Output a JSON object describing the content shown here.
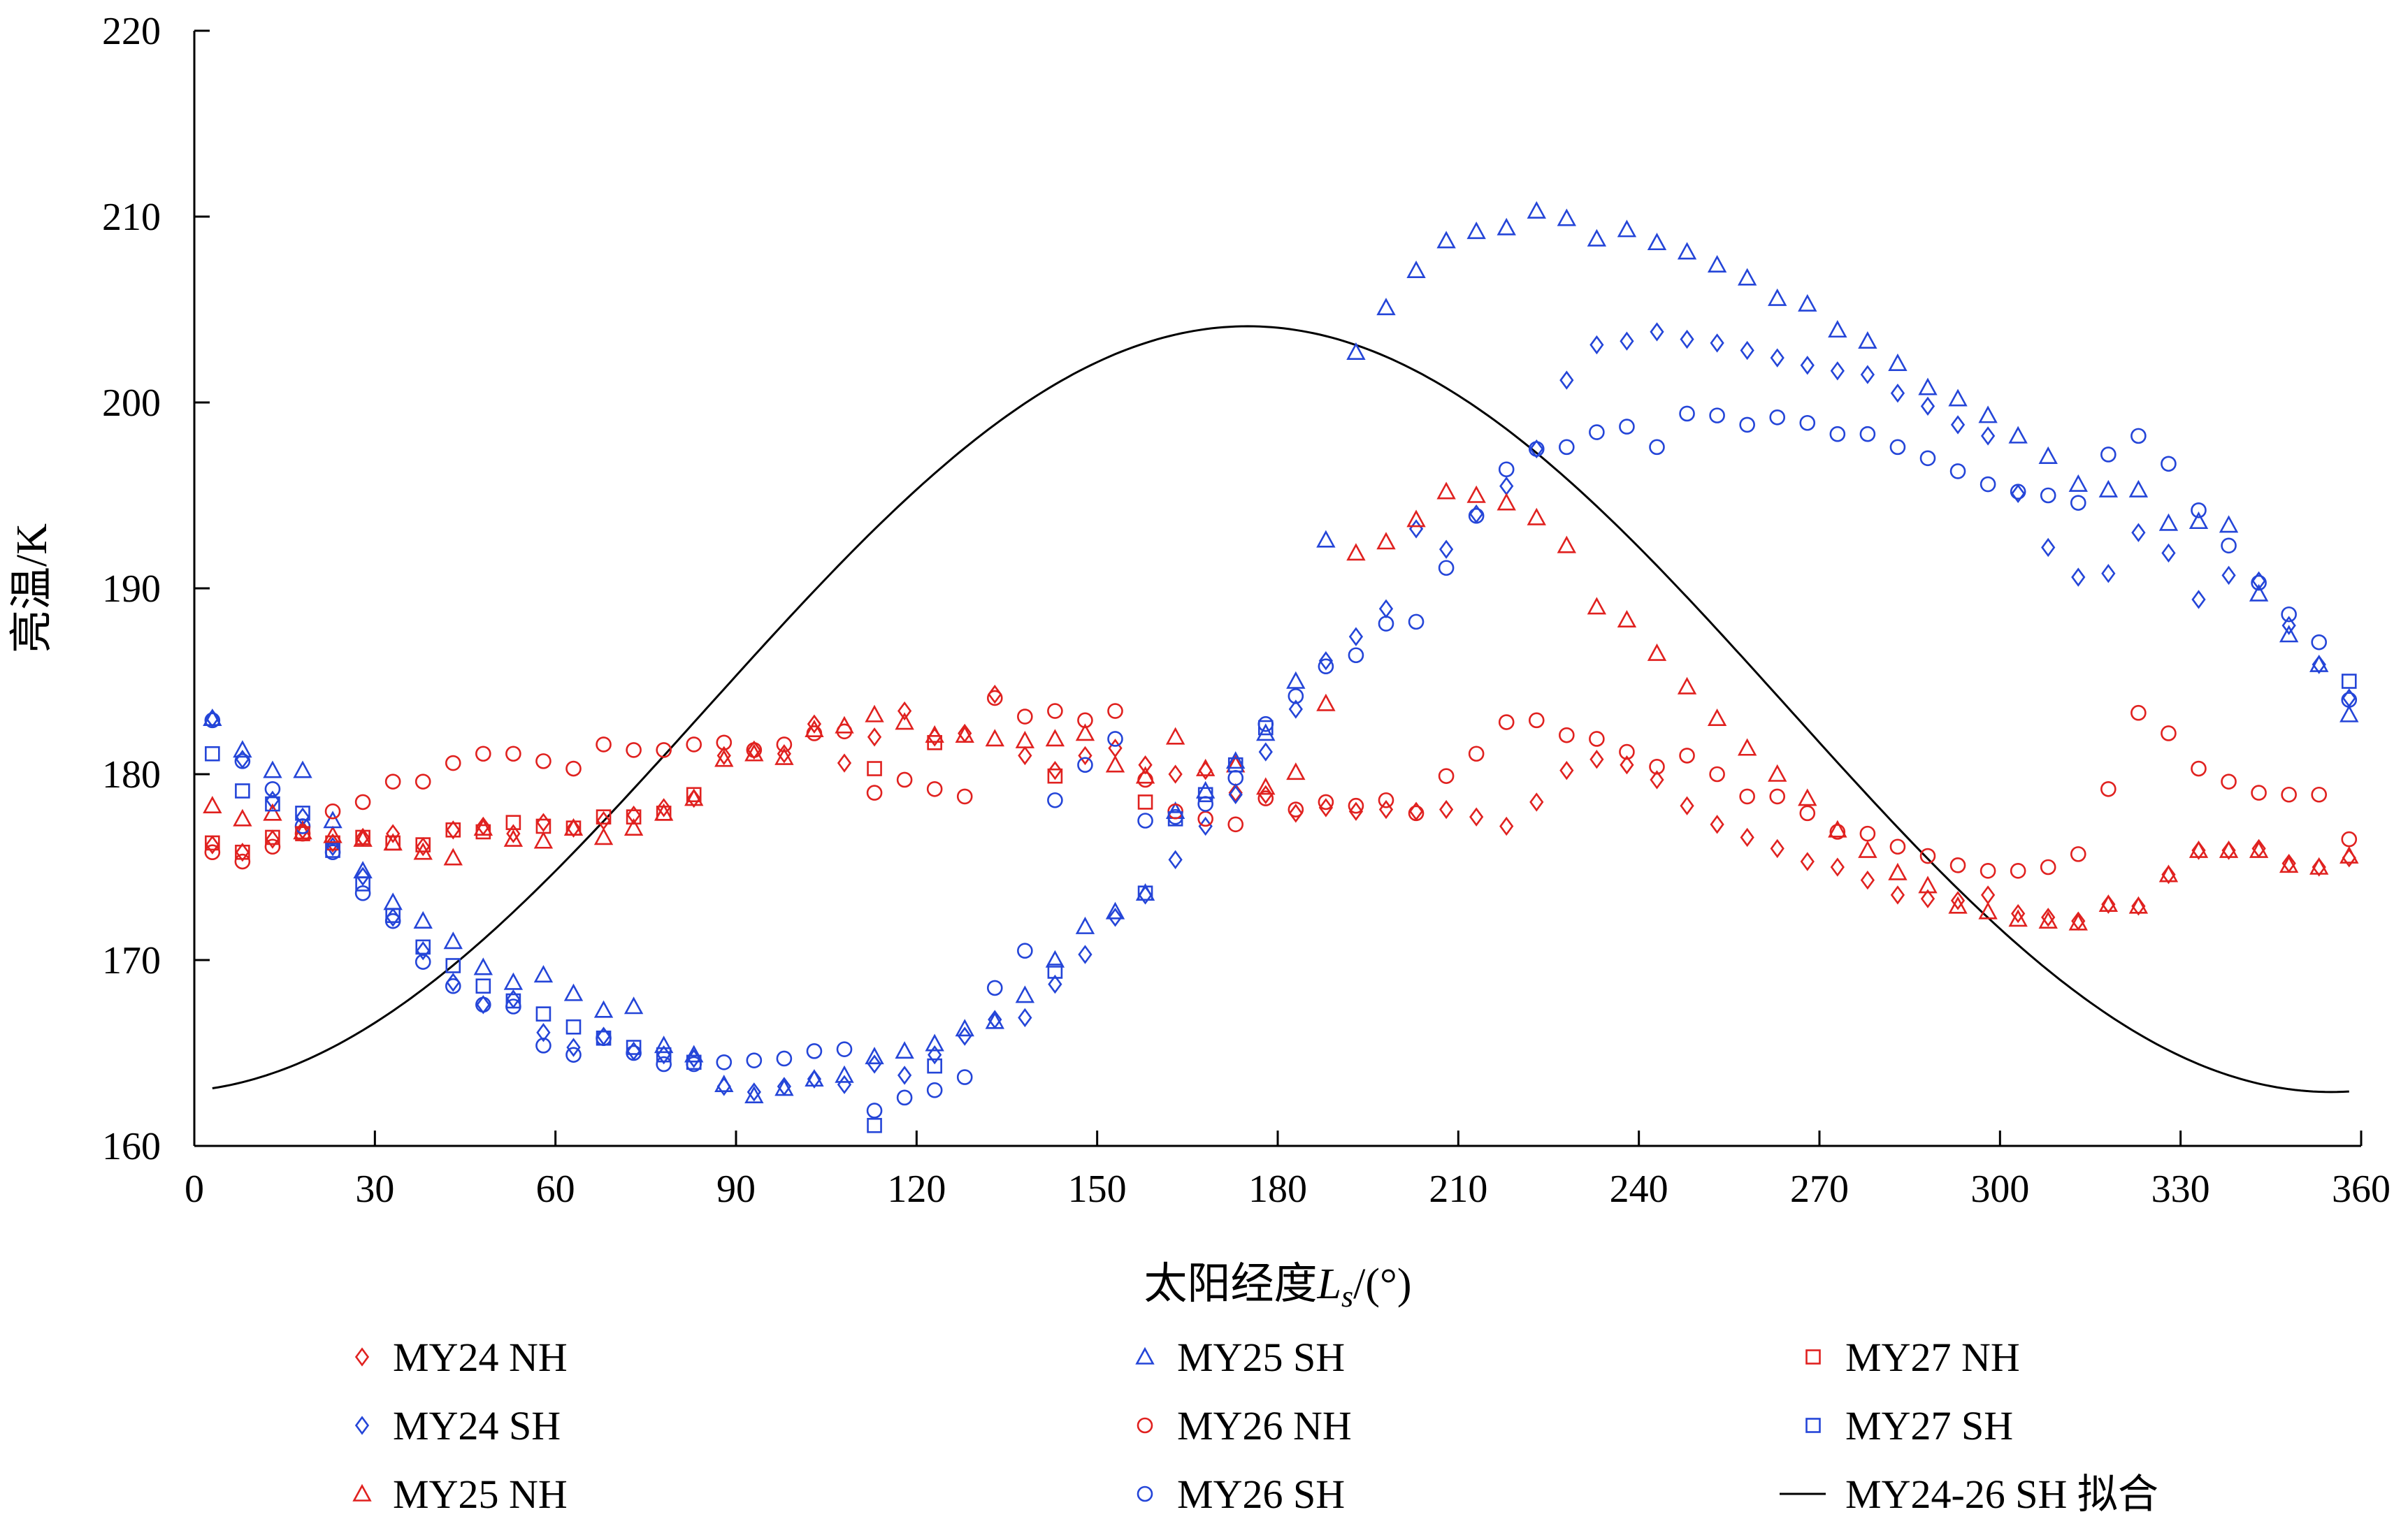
{
  "chart_data": {
    "type": "scatter",
    "title": "",
    "xlabel": "太阳经度",
    "xlabel_symbol": "L",
    "xlabel_subscript": "s",
    "xlabel_unit": "/(°)",
    "ylabel": "亮温/K",
    "xlim": [
      0,
      360
    ],
    "ylim": [
      160,
      220
    ],
    "xticks": [
      0,
      30,
      60,
      90,
      120,
      150,
      180,
      210,
      240,
      270,
      300,
      330,
      360
    ],
    "yticks": [
      160,
      170,
      180,
      190,
      200,
      210,
      220
    ],
    "grid": false,
    "legend_position": "bottom",
    "colors": {
      "red": "#e0211f",
      "blue": "#2445d8",
      "fit": "#000000"
    },
    "series": [
      {
        "name": "MY24 NH",
        "marker": "diamond",
        "color": "#e0211f",
        "x": [
          3,
          8,
          13,
          18,
          23,
          28,
          33,
          38,
          43,
          48,
          53,
          58,
          63,
          68,
          73,
          78,
          83,
          88,
          93,
          98,
          103,
          108,
          113,
          118,
          123,
          128,
          133,
          138,
          143,
          148,
          153,
          158,
          163,
          168,
          173,
          178,
          183,
          188,
          193,
          198,
          203,
          208,
          213,
          218,
          223,
          228,
          233,
          238,
          243,
          248,
          253,
          258,
          263,
          268,
          273,
          278,
          283,
          288,
          293,
          298,
          303,
          308,
          313,
          318,
          323,
          328,
          333,
          338,
          343,
          348,
          353,
          358
        ],
        "y": [
          176.2,
          175.8,
          176.5,
          177,
          176.3,
          176.6,
          176.8,
          176.1,
          177,
          177.2,
          176.8,
          177.4,
          177.1,
          177.5,
          177.8,
          178.2,
          178.7,
          181,
          181.3,
          181.1,
          182.7,
          180.6,
          182,
          183.4,
          182,
          182.2,
          184.3,
          181,
          180.2,
          181,
          181.4,
          180.5,
          180,
          180.2,
          179,
          178.9,
          177.9,
          178.2,
          178,
          178.1,
          178,
          178.1,
          177.7,
          177.2,
          178.5,
          180.2,
          180.8,
          180.5,
          179.7,
          178.3,
          177.3,
          176.6,
          176,
          175.3,
          175,
          174.3,
          173.5,
          173.3,
          173.2,
          173.5,
          172.5,
          172.3,
          172.1,
          173,
          172.9,
          174.6,
          175.9,
          175.9,
          176,
          175.2,
          175,
          175.5
        ]
      },
      {
        "name": "MY24 SH",
        "marker": "diamond",
        "color": "#2445d8",
        "x": [
          3,
          8,
          13,
          18,
          23,
          28,
          33,
          38,
          43,
          48,
          53,
          58,
          63,
          68,
          73,
          78,
          83,
          88,
          93,
          98,
          103,
          108,
          113,
          118,
          123,
          128,
          133,
          138,
          143,
          148,
          153,
          158,
          163,
          168,
          173,
          178,
          183,
          188,
          193,
          198,
          203,
          208,
          213,
          218,
          223,
          228,
          233,
          238,
          243,
          248,
          253,
          258,
          263,
          268,
          273,
          278,
          283,
          288,
          293,
          298,
          303,
          308,
          313,
          318,
          323,
          328,
          333,
          338,
          343,
          348,
          353,
          358
        ],
        "y": [
          183,
          180.8,
          178.6,
          177.7,
          176.1,
          174.5,
          172.3,
          170.5,
          168.8,
          167.6,
          167.9,
          166.1,
          165.3,
          165.9,
          165.1,
          164.9,
          164.7,
          163.2,
          162.9,
          163.2,
          163.6,
          163.3,
          164.4,
          163.8,
          164.9,
          165.9,
          166.8,
          166.9,
          168.7,
          170.3,
          172.3,
          173.5,
          175.4,
          177.2,
          178.9,
          181.2,
          183.5,
          186.1,
          187.4,
          188.9,
          193.2,
          192.1,
          194,
          195.5,
          197.5,
          201.2,
          203.1,
          203.3,
          203.8,
          203.4,
          203.2,
          202.8,
          202.4,
          202,
          201.7,
          201.5,
          200.5,
          199.8,
          198.8,
          198.2,
          195.1,
          192.2,
          190.6,
          190.8,
          193,
          191.9,
          189.4,
          190.7,
          190.4,
          188,
          185.9,
          184.1
        ]
      },
      {
        "name": "MY25 NH",
        "marker": "triangle",
        "color": "#e0211f",
        "x": [
          3,
          8,
          13,
          18,
          23,
          28,
          33,
          38,
          43,
          48,
          53,
          58,
          63,
          68,
          73,
          78,
          83,
          88,
          93,
          98,
          103,
          108,
          113,
          118,
          123,
          128,
          133,
          138,
          143,
          148,
          153,
          158,
          163,
          168,
          173,
          178,
          183,
          188,
          193,
          198,
          203,
          208,
          213,
          218,
          223,
          228,
          233,
          238,
          243,
          248,
          253,
          258,
          263,
          268,
          273,
          278,
          283,
          288,
          293,
          298,
          303,
          308,
          313,
          318,
          323,
          328,
          333,
          338,
          343,
          348,
          353,
          358
        ],
        "y": [
          178.3,
          177.6,
          177.9,
          176.9,
          176.7,
          176.5,
          176.3,
          175.8,
          175.5,
          177.1,
          176.5,
          176.4,
          177.1,
          176.6,
          177.1,
          177.9,
          178.7,
          180.8,
          181.1,
          180.9,
          182.4,
          182.6,
          183.2,
          182.8,
          182.1,
          182.1,
          181.9,
          181.8,
          181.9,
          182.2,
          180.5,
          179.9,
          182,
          180.3,
          180.5,
          179.3,
          180.1,
          183.8,
          191.9,
          192.5,
          193.7,
          195.2,
          195,
          194.6,
          193.8,
          192.3,
          189,
          188.3,
          186.5,
          184.7,
          183,
          181.4,
          180,
          178.7,
          177,
          175.9,
          174.7,
          174,
          172.9,
          172.6,
          172.2,
          172.1,
          172,
          173,
          172.9,
          174.6,
          175.9,
          175.9,
          175.9,
          175.1,
          175,
          175.6
        ]
      },
      {
        "name": "MY25 SH",
        "marker": "triangle",
        "color": "#2445d8",
        "x": [
          3,
          8,
          13,
          18,
          23,
          28,
          33,
          38,
          43,
          48,
          53,
          58,
          63,
          68,
          73,
          78,
          83,
          88,
          93,
          98,
          103,
          108,
          113,
          118,
          123,
          128,
          133,
          138,
          143,
          148,
          153,
          158,
          163,
          168,
          173,
          178,
          183,
          188,
          193,
          198,
          203,
          208,
          213,
          218,
          223,
          228,
          233,
          238,
          243,
          248,
          253,
          258,
          263,
          268,
          273,
          278,
          283,
          288,
          293,
          298,
          303,
          308,
          313,
          318,
          323,
          328,
          333,
          338,
          343,
          348,
          353,
          358
        ],
        "y": [
          183,
          181.3,
          180.2,
          180.2,
          177.5,
          174.8,
          173.1,
          172.1,
          171,
          169.6,
          168.8,
          169.2,
          168.2,
          167.3,
          167.5,
          165.4,
          164.9,
          163.3,
          162.7,
          163.1,
          163.6,
          163.8,
          164.8,
          165.1,
          165.5,
          166.3,
          166.7,
          168.1,
          170,
          171.8,
          172.6,
          173.6,
          178,
          179.1,
          180.7,
          182.2,
          185,
          192.6,
          202.7,
          205.1,
          207.1,
          208.7,
          209.2,
          209.4,
          210.3,
          209.9,
          208.8,
          209.3,
          208.6,
          208.1,
          207.4,
          206.7,
          205.6,
          205.3,
          203.9,
          203.3,
          202.1,
          200.8,
          200.2,
          199.3,
          198.2,
          197.1,
          195.6,
          195.3,
          195.3,
          193.5,
          193.6,
          193.4,
          189.7,
          187.5,
          185.9,
          183.2
        ]
      },
      {
        "name": "MY26 NH",
        "marker": "circle",
        "color": "#e0211f",
        "x": [
          3,
          8,
          13,
          18,
          23,
          28,
          33,
          38,
          43,
          48,
          53,
          58,
          63,
          68,
          73,
          78,
          83,
          88,
          93,
          98,
          103,
          108,
          113,
          118,
          123,
          128,
          133,
          138,
          143,
          148,
          153,
          158,
          163,
          168,
          173,
          178,
          183,
          188,
          193,
          198,
          203,
          208,
          213,
          218,
          223,
          228,
          233,
          238,
          243,
          248,
          253,
          258,
          263,
          268,
          273,
          278,
          283,
          288,
          293,
          298,
          303,
          308,
          313,
          318,
          323,
          328,
          333,
          338,
          343,
          348,
          353,
          358
        ],
        "y": [
          175.8,
          175.3,
          176.1,
          176.8,
          178,
          178.5,
          179.6,
          179.6,
          180.6,
          181.1,
          181.1,
          180.7,
          180.3,
          181.6,
          181.3,
          181.3,
          181.6,
          181.7,
          181.3,
          181.6,
          182.2,
          182.3,
          179,
          179.7,
          179.2,
          178.8,
          184.1,
          183.1,
          183.4,
          182.9,
          183.4,
          179.7,
          178,
          177.6,
          177.3,
          178.7,
          178.1,
          178.5,
          178.3,
          178.6,
          177.9,
          179.9,
          181.1,
          182.8,
          182.9,
          182.1,
          181.9,
          181.2,
          180.4,
          181,
          180,
          178.8,
          178.8,
          177.9,
          176.9,
          176.8,
          176.1,
          175.6,
          175.1,
          174.8,
          174.8,
          175,
          175.7,
          179.2,
          183.3,
          182.2,
          180.3,
          179.6,
          179,
          178.9,
          178.9,
          176.5
        ]
      },
      {
        "name": "MY26 SH",
        "marker": "circle",
        "color": "#2445d8",
        "x": [
          3,
          8,
          13,
          18,
          23,
          28,
          33,
          38,
          43,
          48,
          53,
          58,
          63,
          68,
          73,
          78,
          83,
          88,
          93,
          98,
          103,
          108,
          113,
          118,
          123,
          128,
          133,
          138,
          143,
          148,
          153,
          158,
          163,
          168,
          173,
          178,
          183,
          188,
          193,
          198,
          203,
          208,
          213,
          218,
          223,
          228,
          233,
          238,
          243,
          248,
          253,
          258,
          263,
          268,
          273,
          278,
          283,
          288,
          293,
          298,
          303,
          308,
          313,
          318,
          323,
          328,
          333,
          338,
          343,
          348,
          353,
          358
        ],
        "y": [
          182.9,
          180.7,
          179.2,
          177.2,
          175.8,
          173.6,
          172.1,
          169.9,
          168.6,
          167.6,
          167.5,
          165.4,
          164.9,
          165.8,
          165,
          164.4,
          164.4,
          164.5,
          164.6,
          164.7,
          165.1,
          165.2,
          161.9,
          162.6,
          163,
          163.7,
          168.5,
          170.5,
          178.6,
          180.5,
          181.9,
          177.5,
          177.7,
          178.4,
          179.8,
          182.7,
          184.2,
          185.8,
          186.4,
          188.1,
          188.2,
          191.1,
          193.9,
          196.4,
          197.5,
          197.6,
          198.4,
          198.7,
          197.6,
          199.4,
          199.3,
          198.8,
          199.2,
          198.9,
          198.3,
          198.3,
          197.6,
          197,
          196.3,
          195.6,
          195.2,
          195,
          194.6,
          197.2,
          198.2,
          196.7,
          194.2,
          192.3,
          190.3,
          188.6,
          187.1,
          184
        ]
      },
      {
        "name": "MY27 NH",
        "marker": "square",
        "color": "#e0211f",
        "x": [
          3,
          8,
          13,
          18,
          23,
          28,
          33,
          38,
          43,
          48,
          53,
          58,
          63,
          68,
          73,
          78,
          83,
          113,
          123,
          143,
          158
        ],
        "y": [
          176.3,
          175.8,
          176.6,
          176.8,
          176.3,
          176.6,
          176.3,
          176.2,
          177,
          176.9,
          177.4,
          177.2,
          177.1,
          177.7,
          177.7,
          177.9,
          178.9,
          180.3,
          181.7,
          179.9,
          178.5
        ]
      },
      {
        "name": "MY27 SH",
        "marker": "square",
        "color": "#2445d8",
        "x": [
          3,
          8,
          13,
          18,
          23,
          28,
          33,
          38,
          43,
          48,
          53,
          58,
          63,
          68,
          73,
          78,
          83,
          113,
          123,
          143,
          158,
          163,
          168,
          173,
          178,
          358
        ],
        "y": [
          181.1,
          179.1,
          178.4,
          177.9,
          175.9,
          174.1,
          172.4,
          170.7,
          169.7,
          168.6,
          167.8,
          167.1,
          166.4,
          165.8,
          165.3,
          164.9,
          164.5,
          161.1,
          164.3,
          169.4,
          173.6,
          177.6,
          178.9,
          180.5,
          182.5,
          185
        ]
      },
      {
        "name": "MY24-26 SH 拟合",
        "marker": "line",
        "color": "#000000",
        "mean": 183.5,
        "amplitude": 20.6,
        "phase_deg": 175
      }
    ]
  }
}
